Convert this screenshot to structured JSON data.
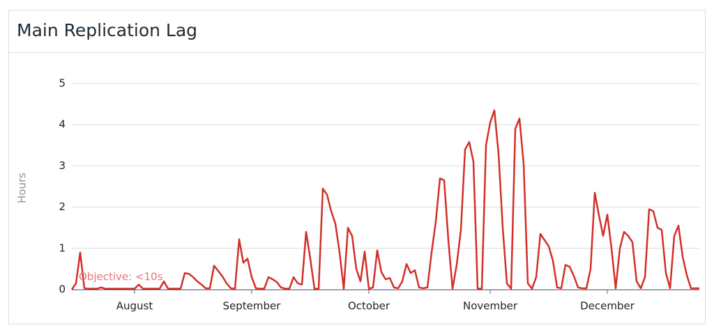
{
  "chart_data": {
    "type": "line",
    "title": "Main Replication Lag",
    "y_label": "Hours",
    "annotation": "Objective: <10s",
    "annotation_color": "#e57373",
    "categories": [
      null,
      null,
      null,
      null,
      null,
      null,
      null,
      null,
      null,
      null,
      null,
      null,
      null,
      null,
      null,
      "August",
      null,
      null,
      null,
      null,
      null,
      null,
      null,
      null,
      null,
      null,
      null,
      null,
      null,
      null,
      null,
      null,
      null,
      null,
      null,
      null,
      null,
      null,
      null,
      null,
      null,
      null,
      null,
      "September",
      null,
      null,
      null,
      null,
      null,
      null,
      null,
      null,
      null,
      null,
      null,
      null,
      null,
      null,
      null,
      null,
      null,
      null,
      null,
      null,
      null,
      null,
      null,
      null,
      null,
      null,
      null,
      "October",
      null,
      null,
      null,
      null,
      null,
      null,
      null,
      null,
      null,
      null,
      null,
      null,
      null,
      null,
      null,
      null,
      null,
      null,
      null,
      null,
      null,
      null,
      null,
      null,
      null,
      null,
      null,
      null,
      "November",
      null,
      null,
      null,
      null,
      null,
      null,
      null,
      null,
      null,
      null,
      null,
      null,
      null,
      null,
      null,
      null,
      null,
      null,
      null,
      null,
      null,
      null,
      null,
      null,
      null,
      null,
      null,
      "December",
      null,
      null,
      null,
      null,
      null,
      null,
      null,
      null,
      null,
      null,
      null,
      null,
      null,
      null,
      null,
      null,
      null,
      null,
      null,
      null,
      null,
      null
    ],
    "series": [
      {
        "name": "Main Replication Lag",
        "color": "#d22f27",
        "values": [
          0,
          0.15,
          0.9,
          0.03,
          0.02,
          0.02,
          0.02,
          0.05,
          0.02,
          0.02,
          0.02,
          0.02,
          0.02,
          0.02,
          0.02,
          0.02,
          0.12,
          0.02,
          0.02,
          0.02,
          0.02,
          0.02,
          0.2,
          0.02,
          0.02,
          0.02,
          0.02,
          0.4,
          0.38,
          0.3,
          0.2,
          0.12,
          0.03,
          0.03,
          0.58,
          0.45,
          0.32,
          0.15,
          0.03,
          0.02,
          1.22,
          0.65,
          0.75,
          0.3,
          0.03,
          0.02,
          0.02,
          0.3,
          0.25,
          0.18,
          0.05,
          0.02,
          0.02,
          0.3,
          0.15,
          0.12,
          1.4,
          0.75,
          0.02,
          0.02,
          2.45,
          2.3,
          1.9,
          1.6,
          0.9,
          0.02,
          1.5,
          1.3,
          0.5,
          0.2,
          0.92,
          0.02,
          0.05,
          0.95,
          0.42,
          0.25,
          0.28,
          0.05,
          0.03,
          0.2,
          0.62,
          0.4,
          0.47,
          0.05,
          0.03,
          0.05,
          0.9,
          1.65,
          2.7,
          2.65,
          1.2,
          0.02,
          0.6,
          1.45,
          3.4,
          3.58,
          3.1,
          0.02,
          0.02,
          3.5,
          4.05,
          4.35,
          3.3,
          1.5,
          0.15,
          0.02,
          3.9,
          4.15,
          3.05,
          0.15,
          0.02,
          0.3,
          1.35,
          1.2,
          1.05,
          0.7,
          0.05,
          0.03,
          0.6,
          0.55,
          0.33,
          0.05,
          0.03,
          0.03,
          0.5,
          2.35,
          1.8,
          1.3,
          1.82,
          1.0,
          0.03,
          1.0,
          1.4,
          1.3,
          1.15,
          0.2,
          0.03,
          0.3,
          1.95,
          1.9,
          1.5,
          1.45,
          0.4,
          0.03,
          1.3,
          1.55,
          0.8,
          0.35,
          0.03,
          0.03,
          0.03
        ]
      }
    ],
    "ylim": [
      0,
      5
    ],
    "yticks": [
      0,
      1,
      2,
      3,
      4,
      5
    ],
    "grid": true
  }
}
